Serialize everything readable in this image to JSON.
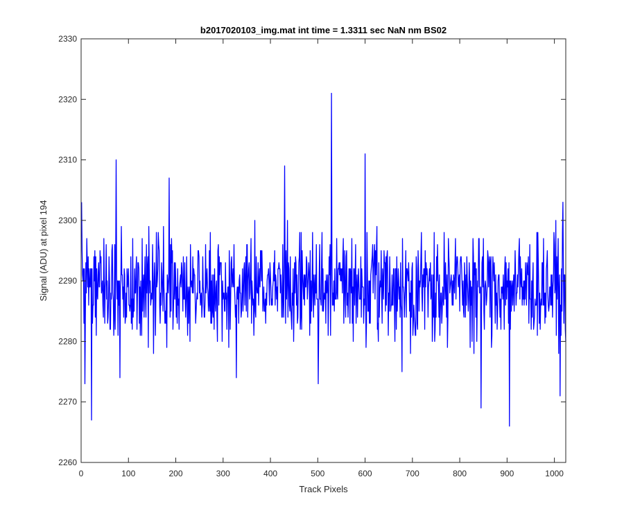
{
  "chart_data": {
    "type": "line",
    "title": "b2017020103_img.mat int time = 1.3311 sec  NaN nm BS02",
    "xlabel": "Track Pixels",
    "ylabel": "Signal (ADU) at pixel 194",
    "xlim": [
      0,
      1024
    ],
    "ylim": [
      2260,
      2330
    ],
    "xticks": [
      0,
      100,
      200,
      300,
      400,
      500,
      600,
      700,
      800,
      900,
      1000
    ],
    "yticks": [
      2260,
      2270,
      2280,
      2290,
      2300,
      2310,
      2320,
      2330
    ],
    "grid": false,
    "series": [
      {
        "color": "#0000ff",
        "noise_mean": 2289,
        "noise_amplitude": 7,
        "x_start": 1,
        "x_end": 1024,
        "features": [
          {
            "x": 1,
            "y": 2303
          },
          {
            "x": 8,
            "y": 2273
          },
          {
            "x": 22,
            "y": 2267
          },
          {
            "x": 74,
            "y": 2310
          },
          {
            "x": 82,
            "y": 2274
          },
          {
            "x": 186,
            "y": 2307
          },
          {
            "x": 328,
            "y": 2274
          },
          {
            "x": 430,
            "y": 2309
          },
          {
            "x": 501,
            "y": 2273
          },
          {
            "x": 529,
            "y": 2321
          },
          {
            "x": 600,
            "y": 2311
          },
          {
            "x": 678,
            "y": 2275
          },
          {
            "x": 845,
            "y": 2269
          },
          {
            "x": 905,
            "y": 2266
          },
          {
            "x": 1012,
            "y": 2271
          },
          {
            "x": 1018,
            "y": 2303
          }
        ]
      }
    ]
  }
}
